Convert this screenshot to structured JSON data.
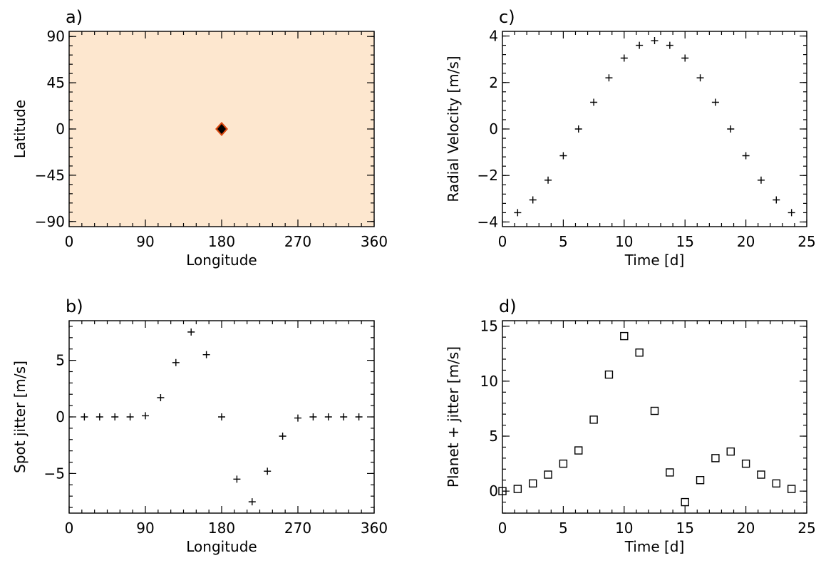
{
  "chart_data": [
    {
      "panel_label": "a)",
      "type": "heatmap",
      "xlabel": "Longitude",
      "ylabel": "Latitude",
      "xlim": [
        0,
        360
      ],
      "ylim": [
        -95,
        95
      ],
      "xticks": [
        0,
        90,
        180,
        270,
        360
      ],
      "yticks": [
        -90,
        -45,
        0,
        45,
        90
      ],
      "background_color": "#fde7cf",
      "spot": {
        "longitude": 180,
        "latitude": 0,
        "core_color": "#000000",
        "rim_color": "#d9480f"
      }
    },
    {
      "panel_label": "b)",
      "type": "scatter",
      "marker": "plus",
      "xlabel": "Longitude",
      "ylabel": "Spot jitter [m/s]",
      "xlim": [
        0,
        360
      ],
      "ylim": [
        -8.5,
        8.5
      ],
      "xticks": [
        0,
        90,
        180,
        270,
        360
      ],
      "yticks": [
        -5,
        0,
        5
      ],
      "x": [
        18,
        36,
        54,
        72,
        90,
        108,
        126,
        144,
        162,
        180,
        198,
        216,
        234,
        252,
        270,
        288,
        306,
        324,
        342
      ],
      "y": [
        0,
        0,
        0,
        0,
        0.1,
        1.7,
        4.8,
        7.5,
        5.5,
        0,
        -5.5,
        -7.5,
        -4.8,
        -1.7,
        -0.1,
        0,
        0,
        0,
        0
      ]
    },
    {
      "panel_label": "c)",
      "type": "scatter",
      "marker": "plus",
      "xlabel": "Time [d]",
      "ylabel": "Radial Velocity [m/s]",
      "xlim": [
        0,
        25
      ],
      "ylim": [
        -4.2,
        4.2
      ],
      "xticks": [
        0,
        5,
        10,
        15,
        20,
        25
      ],
      "yticks": [
        -4,
        -2,
        0,
        2,
        4
      ],
      "x": [
        1.25,
        2.5,
        3.75,
        5,
        6.25,
        7.5,
        8.75,
        10,
        11.25,
        12.5,
        13.75,
        15,
        16.25,
        17.5,
        18.75,
        20,
        21.25,
        22.5,
        23.75
      ],
      "y": [
        -3.6,
        -3.05,
        -2.2,
        -1.15,
        0,
        1.15,
        2.2,
        3.05,
        3.6,
        3.8,
        3.6,
        3.05,
        2.2,
        1.15,
        0,
        -1.15,
        -2.2,
        -3.05,
        -3.6
      ]
    },
    {
      "panel_label": "d)",
      "type": "scatter",
      "marker": "square",
      "xlabel": "Time [d]",
      "ylabel": "Planet + jitter [m/s]",
      "xlim": [
        0,
        25
      ],
      "ylim": [
        -2,
        15.5
      ],
      "xticks": [
        0,
        5,
        10,
        15,
        20,
        25
      ],
      "yticks": [
        0,
        5,
        10,
        15
      ],
      "x": [
        0,
        1.25,
        2.5,
        3.75,
        5,
        6.25,
        7.5,
        8.75,
        10,
        11.25,
        12.5,
        13.75,
        15,
        16.25,
        17.5,
        18.75,
        20,
        21.25,
        22.5,
        23.75
      ],
      "y": [
        0,
        0.2,
        0.7,
        1.5,
        2.5,
        3.7,
        6.5,
        10.6,
        14.1,
        12.6,
        7.3,
        1.7,
        -1.0,
        1.0,
        3.0,
        3.6,
        2.5,
        1.5,
        0.7,
        0.2
      ]
    }
  ]
}
